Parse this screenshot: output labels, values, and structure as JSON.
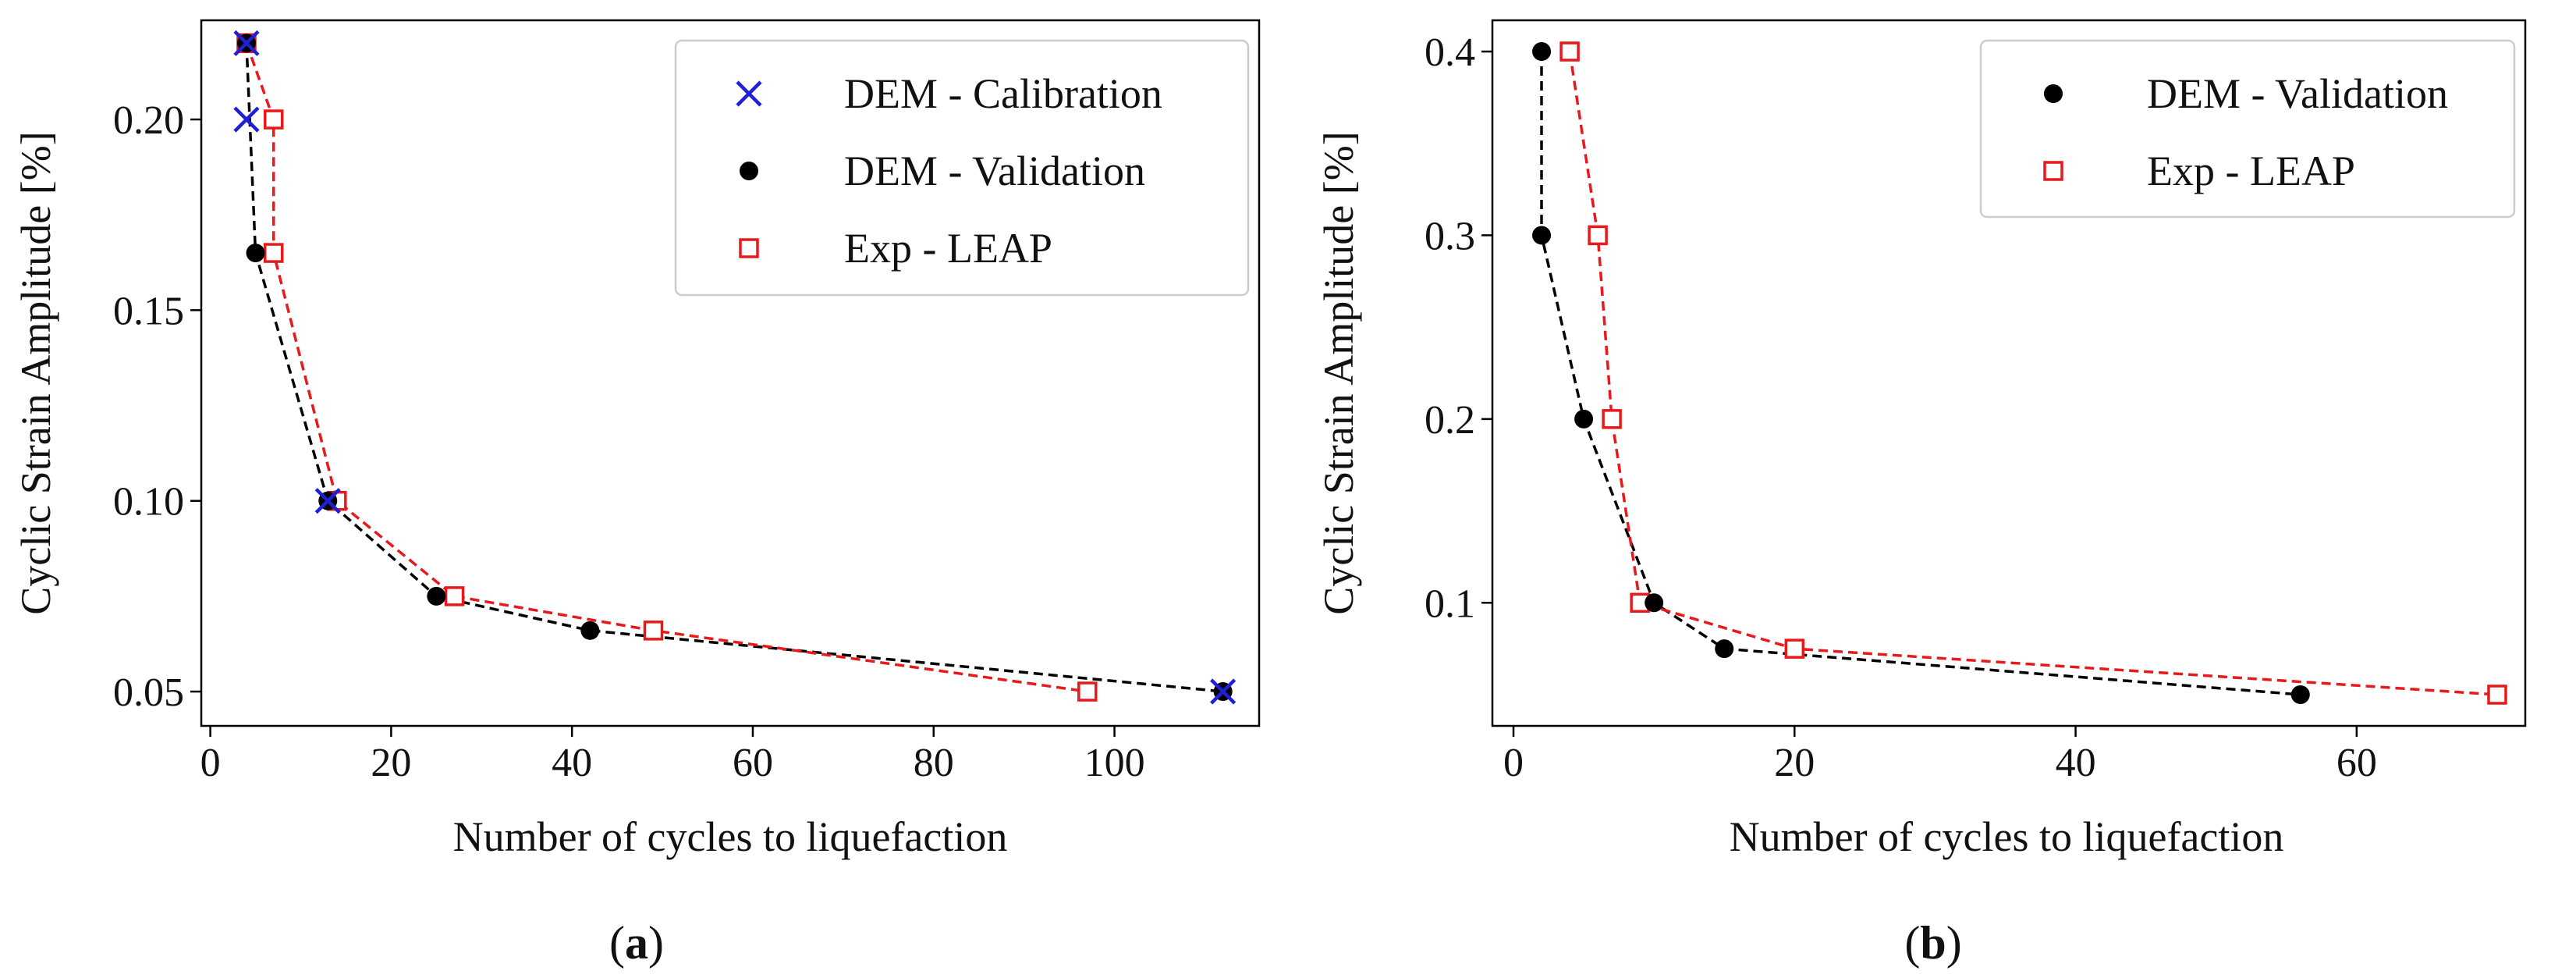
{
  "chart_data": [
    {
      "panel_label": "(a)",
      "panel_letter": "a",
      "type": "line",
      "xlabel": "Number of cycles to liquefaction",
      "ylabel": "Cyclic Strain Amplitude [%]",
      "xlim": [
        -1,
        116
      ],
      "ylim": [
        0.041,
        0.226
      ],
      "xticks": [
        0,
        20,
        40,
        60,
        80,
        100
      ],
      "xtick_labels": [
        "0",
        "20",
        "40",
        "60",
        "80",
        "100"
      ],
      "yticks": [
        0.05,
        0.1,
        0.15,
        0.2
      ],
      "ytick_labels": [
        "0.05",
        "0.10",
        "0.15",
        "0.20"
      ],
      "legend_position": "top-right",
      "series": [
        {
          "name": "DEM - Calibration",
          "marker": "x",
          "color": "#1f1fd6",
          "line": false,
          "points": [
            [
              4,
              0.22
            ],
            [
              4,
              0.2
            ],
            [
              13,
              0.1
            ],
            [
              112,
              0.05
            ]
          ]
        },
        {
          "name": "DEM - Validation",
          "marker": "dot",
          "color": "#000000",
          "line": true,
          "points": [
            [
              4,
              0.22
            ],
            [
              5,
              0.165
            ],
            [
              13,
              0.1
            ],
            [
              25,
              0.075
            ],
            [
              42,
              0.066
            ],
            [
              112,
              0.05
            ]
          ]
        },
        {
          "name": "Exp - LEAP",
          "marker": "square",
          "color": "#e8191b",
          "line": true,
          "points": [
            [
              4,
              0.22
            ],
            [
              7,
              0.2
            ],
            [
              7,
              0.165
            ],
            [
              14,
              0.1
            ],
            [
              27,
              0.075
            ],
            [
              49,
              0.066
            ],
            [
              97,
              0.05
            ]
          ]
        }
      ]
    },
    {
      "panel_label": "(b)",
      "panel_letter": "b",
      "type": "line",
      "xlabel": "Number of cycles to liquefaction",
      "ylabel": "Cyclic Strain Amplitude [%]",
      "xlim": [
        -1.5,
        72
      ],
      "ylim": [
        0.033,
        0.417
      ],
      "xticks": [
        0,
        20,
        40,
        60
      ],
      "xtick_labels": [
        "0",
        "20",
        "40",
        "60"
      ],
      "yticks": [
        0.1,
        0.2,
        0.3,
        0.4
      ],
      "ytick_labels": [
        "0.1",
        "0.2",
        "0.3",
        "0.4"
      ],
      "legend_position": "top-right",
      "series": [
        {
          "name": "DEM - Validation",
          "marker": "dot",
          "color": "#000000",
          "line": true,
          "points": [
            [
              2,
              0.4
            ],
            [
              2,
              0.3
            ],
            [
              5,
              0.2
            ],
            [
              10,
              0.1
            ],
            [
              15,
              0.075
            ],
            [
              56,
              0.05
            ]
          ]
        },
        {
          "name": "Exp - LEAP",
          "marker": "square",
          "color": "#e8191b",
          "line": true,
          "points": [
            [
              4,
              0.4
            ],
            [
              6,
              0.3
            ],
            [
              7,
              0.2
            ],
            [
              9,
              0.1
            ],
            [
              20,
              0.075
            ],
            [
              70,
              0.05
            ]
          ]
        }
      ]
    }
  ]
}
